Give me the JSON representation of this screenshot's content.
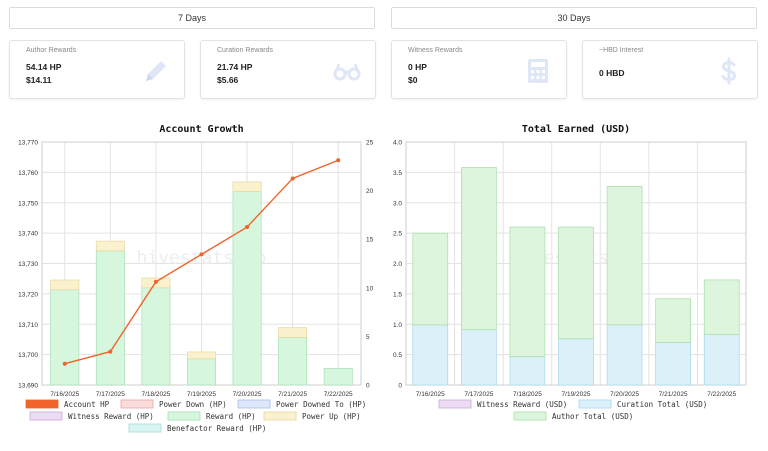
{
  "tabs": [
    {
      "label": "7 Days"
    },
    {
      "label": "30 Days"
    }
  ],
  "cards": [
    {
      "title": "Author Rewards",
      "value1": "54.14 HP",
      "value2": "$14.11",
      "icon": "pencil-icon"
    },
    {
      "title": "Curation Rewards",
      "value1": "21.74 HP",
      "value2": "$5.66",
      "icon": "glasses-icon"
    },
    {
      "title": "Witness Rewards",
      "value1": "0 HP",
      "value2": "$0",
      "icon": "calculator-icon"
    },
    {
      "title": "~HBD Interest",
      "value1": "0 HBD",
      "icon": "dollar-icon"
    }
  ],
  "colors": {
    "account_hp": "#f0642c",
    "reward_fill": "#d6f7dd",
    "powerup_fill": "#faf1cf",
    "curation_fill": "#dcf0fa",
    "author_fill": "#dcf5dc",
    "icon": "#dfe6f5"
  },
  "chart_data": [
    {
      "type": "bar",
      "title": "Account Growth",
      "watermark": "hivestats.io",
      "categories": [
        "7/16/2025",
        "7/17/2025",
        "7/18/2025",
        "7/19/2025",
        "7/20/2025",
        "7/21/2025",
        "7/22/2025"
      ],
      "y_left": {
        "ylim": [
          13690,
          13770
        ],
        "ticks": [
          "13,690",
          "13,700",
          "13,710",
          "13,720",
          "13,730",
          "13,740",
          "13,750",
          "13,760",
          "13,770"
        ]
      },
      "y_right": {
        "ylim": [
          0,
          25
        ],
        "ticks": [
          "0",
          "5",
          "10",
          "15",
          "20",
          "25"
        ]
      },
      "series": [
        {
          "name": "Account HP",
          "type": "line",
          "axis": "left",
          "values": [
            13697,
            13701,
            13724,
            13733,
            13742,
            13758,
            13764
          ]
        },
        {
          "name": "Power Down (HP)",
          "type": "bar",
          "axis": "right",
          "values": [
            0,
            0,
            0,
            0,
            0,
            0,
            0
          ]
        },
        {
          "name": "Power Downed To (HP)",
          "type": "bar",
          "axis": "right",
          "values": [
            0,
            0,
            0,
            0,
            0,
            0,
            0
          ]
        },
        {
          "name": "Witness Reward (HP)",
          "type": "bar",
          "axis": "right",
          "values": [
            0,
            0,
            0,
            0,
            0,
            0,
            0
          ]
        },
        {
          "name": "Reward (HP)",
          "type": "bar",
          "axis": "right",
          "values": [
            9.8,
            13.8,
            10.0,
            2.7,
            19.9,
            4.9,
            1.7
          ]
        },
        {
          "name": "Power Up (HP)",
          "type": "bar",
          "axis": "right",
          "values": [
            1.0,
            1.0,
            1.0,
            0.7,
            1.0,
            1.0,
            0
          ]
        },
        {
          "name": "Benefactor Reward (HP)",
          "type": "bar",
          "axis": "right",
          "values": [
            0,
            0,
            0,
            0,
            0,
            0,
            0
          ]
        }
      ],
      "legend": "bottom"
    },
    {
      "type": "bar",
      "title": "Total Earned (USD)",
      "watermark": "hivestats.io",
      "categories": [
        "7/16/2025",
        "7/17/2025",
        "7/18/2025",
        "7/19/2025",
        "7/20/2025",
        "7/21/2025",
        "7/22/2025"
      ],
      "ylim": [
        0,
        4
      ],
      "ticks": [
        "0",
        "0.5",
        "1.0",
        "1.5",
        "2.0",
        "2.5",
        "3.0",
        "3.5",
        "4.0"
      ],
      "stacked": true,
      "series": [
        {
          "name": "Witness Reward (USD)",
          "values": [
            0,
            0,
            0,
            0,
            0,
            0,
            0
          ]
        },
        {
          "name": "Curation Total (USD)",
          "values": [
            0.99,
            0.91,
            0.47,
            0.76,
            0.99,
            0.7,
            0.83
          ]
        },
        {
          "name": "Author Total (USD)",
          "values": [
            1.51,
            2.67,
            2.13,
            1.84,
            2.28,
            0.72,
            0.9
          ]
        }
      ],
      "legend": "bottom"
    }
  ]
}
